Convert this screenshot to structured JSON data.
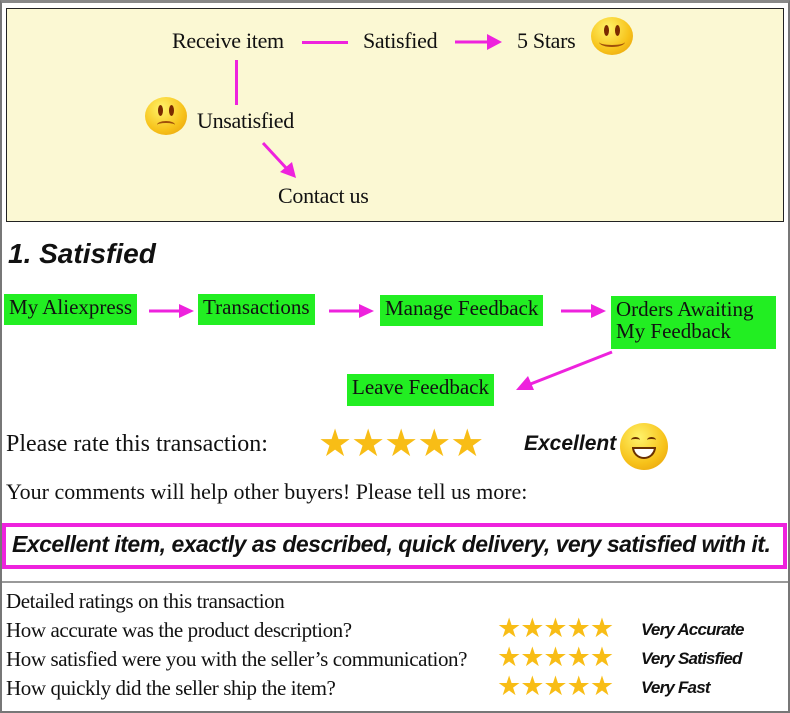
{
  "flow": {
    "receive": "Receive item",
    "satisfied": "Satisfied",
    "five_stars": "5 Stars",
    "unsatisfied": "Unsatisfied",
    "contact": "Contact us"
  },
  "section_title": "1. Satisfied",
  "steps": [
    "My Aliexpress",
    "Transactions",
    "Manage Feedback",
    "Orders Awaiting",
    "My Feedback",
    "Leave Feedback"
  ],
  "rating": {
    "prompt": "Please rate this transaction:",
    "stars": 5,
    "stars_glyph": "★★★★★",
    "label": "Excellent"
  },
  "comments_prompt": "Your comments will help other buyers! Please tell us more:",
  "comment": "Excellent item, exactly as described, quick delivery, very satisfied with it.",
  "detailed": {
    "title": "Detailed ratings on this transaction",
    "rows": [
      {
        "q": "How accurate was the product description?",
        "stars": 5,
        "label": "Very Accurate"
      },
      {
        "q": "How satisfied were you with the seller’s communication?",
        "stars": 5,
        "label": "Very Satisfied"
      },
      {
        "q": "How quickly did the seller ship the item?",
        "stars": 5,
        "label": "Very Fast"
      }
    ]
  },
  "colors": {
    "arrow": "#ee22dd",
    "step_bg": "#22ee22",
    "top_bg": "#fbf8d3",
    "star": "#f8bd16"
  }
}
